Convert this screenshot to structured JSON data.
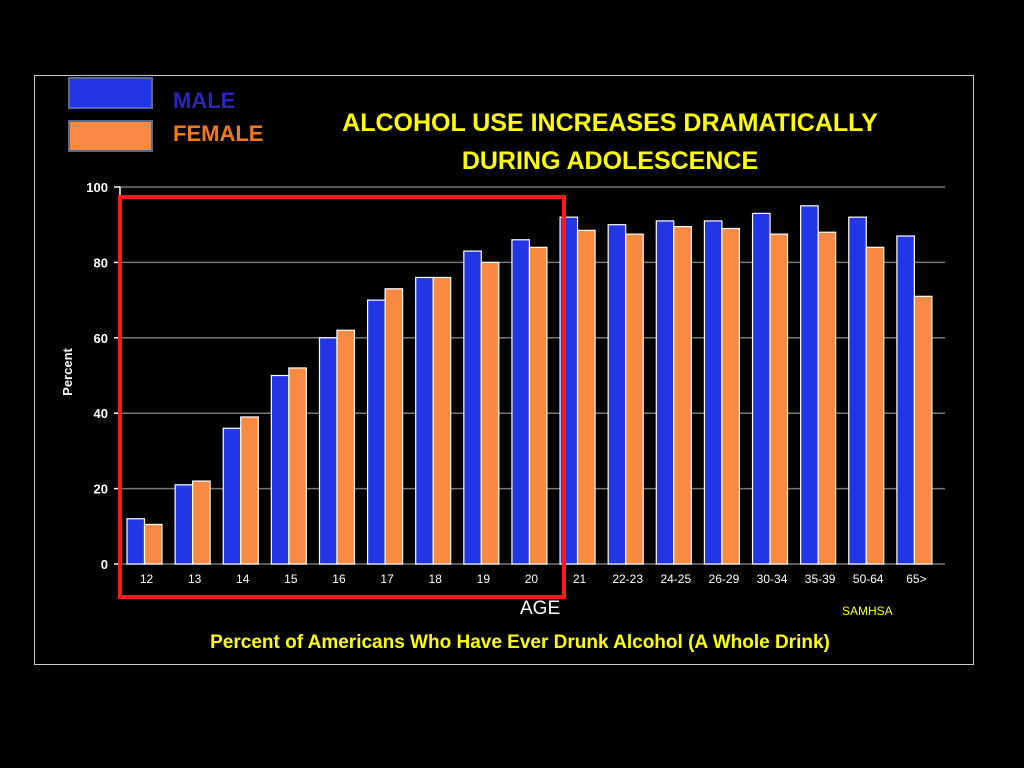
{
  "legend": {
    "items": [
      {
        "label": "MALE",
        "color": "#2336e6",
        "text_color": "#2a24b8"
      },
      {
        "label": "FEMALE",
        "color": "#f98a43",
        "text_color": "#f07a1a"
      }
    ]
  },
  "title": {
    "line1": "ALCOHOL USE  INCREASES DRAMATICALLY",
    "line2": "DURING ADOLESCENCE"
  },
  "xaxis_label": "AGE",
  "source": "SAMHSA",
  "subtitle": "Percent of Americans Who Have Ever Drunk Alcohol (A Whole  Drink)",
  "colors": {
    "male": "#2336e6",
    "female": "#f98a43",
    "highlight": "#ff1a1a",
    "title": "#ffff00",
    "grid": "#777777"
  },
  "chart_data": {
    "type": "bar",
    "ylabel": "Percent",
    "xlabel": "AGE",
    "ylim": [
      0,
      100
    ],
    "yticks": [
      0,
      20,
      40,
      60,
      80,
      100
    ],
    "grid": true,
    "legend_position": "top-left",
    "categories": [
      "12",
      "13",
      "14",
      "15",
      "16",
      "17",
      "18",
      "19",
      "20",
      "21",
      "22-23",
      "24-25",
      "26-29",
      "30-34",
      "35-39",
      "50-64",
      "65>"
    ],
    "series": [
      {
        "name": "MALE",
        "values": [
          12,
          21,
          36,
          50,
          60,
          70,
          76,
          83,
          86,
          92,
          90,
          91,
          91,
          93,
          95,
          92,
          87
        ]
      },
      {
        "name": "FEMALE",
        "values": [
          10.5,
          22,
          39,
          52,
          62,
          73,
          76,
          80,
          84,
          88.5,
          87.5,
          89.5,
          89,
          87.5,
          88,
          84,
          71
        ]
      }
    ],
    "highlighted_categories": [
      "12",
      "13",
      "14",
      "15",
      "16",
      "17",
      "18",
      "19",
      "20"
    ]
  }
}
